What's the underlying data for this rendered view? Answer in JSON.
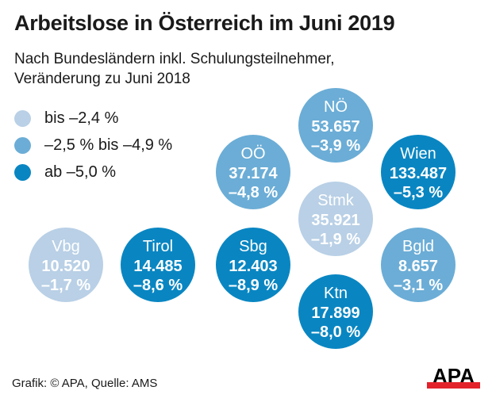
{
  "header": {
    "title": "Arbeitslose in Österreich im Juni 2019",
    "subtitle_lines": [
      "Nach Bundesländern inkl. Schulungsteilnehmer,",
      "Veränderung zu Juni 2018"
    ]
  },
  "legend": [
    {
      "label": "bis –2,4 %",
      "color": "#b9d0e6"
    },
    {
      "label": "–2,5 % bis –4,9 %",
      "color": "#6badd6"
    },
    {
      "label": "ab –5,0 %",
      "color": "#0986c2"
    }
  ],
  "chart_data": {
    "type": "bubble-grid",
    "title": "Arbeitslose in Österreich im Juni 2019",
    "categories": [
      "NÖ",
      "OÖ",
      "Wien",
      "Stmk",
      "Vbg",
      "Tirol",
      "Sbg",
      "Bgld",
      "Ktn"
    ],
    "values": [
      "53.657",
      "37.174",
      "133.487",
      "35.921",
      "10.520",
      "14.485",
      "12.403",
      "8.657",
      "17.899"
    ],
    "changes": [
      "–3,9 %",
      "–4,8 %",
      "–5,3 %",
      "–1,9 %",
      "–1,7 %",
      "–8,6 %",
      "–8,9 %",
      "–3,1 %",
      "–8,0 %"
    ],
    "change_classes": [
      1,
      1,
      2,
      0,
      0,
      2,
      2,
      1,
      2
    ]
  },
  "footer": {
    "source": "Grafik: © APA, Quelle: AMS",
    "logo": "APA"
  }
}
